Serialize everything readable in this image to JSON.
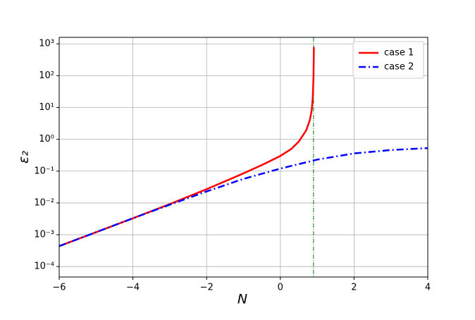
{
  "chart_data": {
    "type": "line",
    "xlabel": "N",
    "ylabel": "ε₂",
    "xlim": [
      -6,
      4
    ],
    "xticks": [
      {
        "value": -6,
        "label": "−6"
      },
      {
        "value": -4,
        "label": "−4"
      },
      {
        "value": -2,
        "label": "−2"
      },
      0,
      2,
      4
    ],
    "ylim": [
      4.7e-05,
      1600
    ],
    "log_y": true,
    "yticks": [
      {
        "value": 0.0001,
        "label": "10⁻⁴"
      },
      {
        "value": 0.001,
        "label": "10⁻³"
      },
      {
        "value": 0.01,
        "label": "10⁻²"
      },
      {
        "value": 0.1,
        "label": "10⁻¹"
      },
      {
        "value": 1,
        "label": "10⁰"
      },
      {
        "value": 10,
        "label": "10¹"
      },
      {
        "value": 100,
        "label": "10²"
      },
      {
        "value": 1000,
        "label": "10³"
      }
    ],
    "grid": true,
    "legend": "upper right",
    "vline": {
      "x": 0.9,
      "color": "#008000"
    },
    "series": [
      {
        "name": "case 1",
        "color": "#ff0000",
        "style": "solid",
        "x": [
          -6,
          -5,
          -4,
          -3,
          -2,
          -1,
          -0.5,
          0,
          0.3,
          0.5,
          0.7,
          0.8,
          0.85,
          0.88,
          0.9,
          0.91
        ],
        "values": [
          0.00044,
          0.0012,
          0.0033,
          0.0092,
          0.027,
          0.085,
          0.155,
          0.3,
          0.5,
          0.85,
          1.9,
          4,
          8,
          20,
          100,
          800
        ]
      },
      {
        "name": "case 2",
        "color": "#0000ff",
        "style": "dashdot",
        "x": [
          -6,
          -5,
          -4,
          -3,
          -2,
          -1,
          0,
          1,
          2,
          3,
          4
        ],
        "values": [
          0.00044,
          0.0012,
          0.0033,
          0.0088,
          0.023,
          0.057,
          0.12,
          0.23,
          0.36,
          0.46,
          0.53
        ]
      }
    ]
  }
}
